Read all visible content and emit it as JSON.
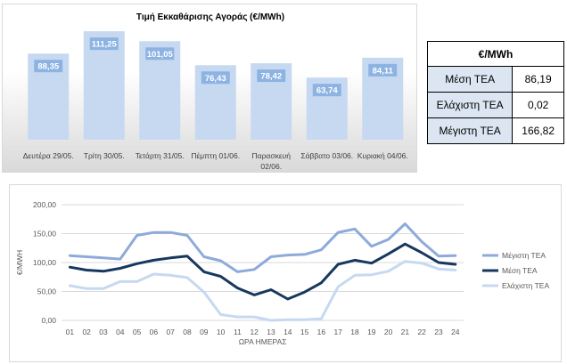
{
  "chart_data": [
    {
      "type": "bar",
      "title": "Τιμή Εκκαθάρισης Αγοράς (€/MWh)",
      "categories": [
        "Δευτέρα 29/05.",
        "Τρίτη 30/05.",
        "Τετάρτη 31/05.",
        "Πέμπτη 01/06.",
        "Παρασκευή 02/06.",
        "Σάββατο 03/06.",
        "Κυριακή 04/06."
      ],
      "values": [
        88.35,
        111.25,
        101.05,
        76.43,
        78.42,
        63.74,
        84.11
      ],
      "value_labels": [
        "88,35",
        "111,25",
        "101,05",
        "76,43",
        "78,42",
        "63,74",
        "84,11"
      ],
      "colors": {
        "bar": "#c6d9f1",
        "label_bg": "#8db3e2",
        "label_text": "#ffffff"
      },
      "grid": false
    },
    {
      "type": "line",
      "xlabel": "ΩΡΑ ΗΜΕΡΑΣ",
      "ylabel": "€/MWH",
      "x": [
        "01",
        "02",
        "03",
        "04",
        "05",
        "06",
        "07",
        "08",
        "09",
        "10",
        "11",
        "12",
        "13",
        "14",
        "15",
        "16",
        "17",
        "18",
        "19",
        "20",
        "21",
        "22",
        "23",
        "24"
      ],
      "ylim": [
        0,
        200
      ],
      "yticks": [
        "0,00",
        "50,00",
        "100,00",
        "150,00",
        "200,00"
      ],
      "grid": true,
      "legend": "right",
      "series": [
        {
          "name": "Μέγιστη ΤΕΑ",
          "color": "#8eaadb",
          "values": [
            112,
            110,
            108,
            106,
            147,
            152,
            152,
            147,
            110,
            103,
            84,
            88,
            110,
            113,
            114,
            122,
            152,
            158,
            128,
            140,
            167,
            136,
            111,
            112
          ]
        },
        {
          "name": "Μέση ΤΕΑ",
          "color": "#17375e",
          "values": [
            92,
            87,
            85,
            90,
            98,
            104,
            108,
            111,
            84,
            76,
            56,
            44,
            53,
            37,
            49,
            65,
            97,
            104,
            99,
            115,
            132,
            117,
            100,
            97
          ]
        },
        {
          "name": "Ελάχιστη ΤΕΑ",
          "color": "#c5d9f1",
          "values": [
            60,
            55,
            55,
            67,
            67,
            80,
            78,
            74,
            49,
            10,
            6,
            6,
            0.02,
            1,
            1,
            3,
            58,
            78,
            79,
            85,
            102,
            99,
            89,
            87
          ]
        }
      ]
    }
  ],
  "stats_table": {
    "header": "€/MWh",
    "rows": [
      {
        "label": "Μέση ΤΕΑ",
        "value": "86,19"
      },
      {
        "label": "Ελάχιστη ΤΕΑ",
        "value": "0,02"
      },
      {
        "label": "Μέγιστη ΤΕΑ",
        "value": "166,82"
      }
    ]
  }
}
